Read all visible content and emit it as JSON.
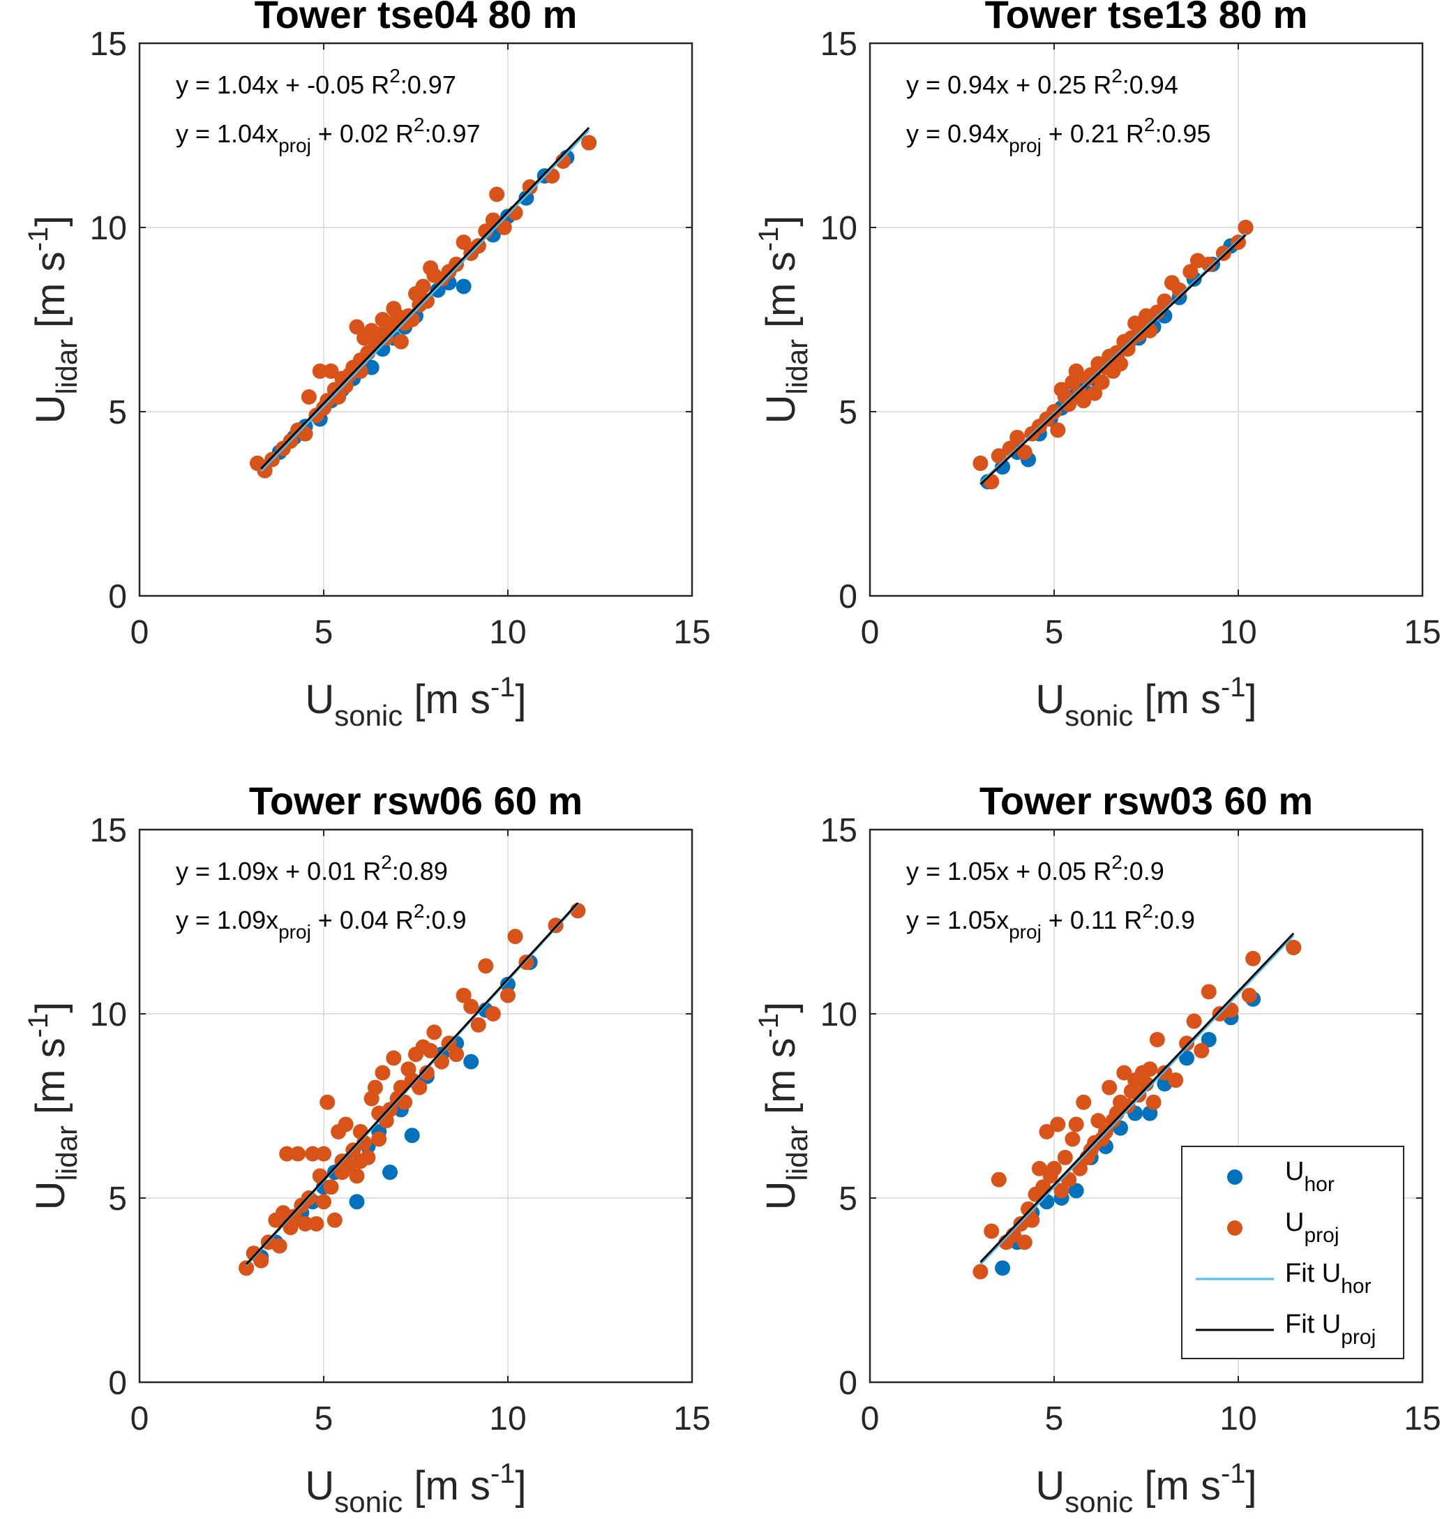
{
  "colors": {
    "u_hor": "#0072bd",
    "u_proj": "#d95319",
    "fit_hor": "#4dbeee",
    "fit_proj": "#000000",
    "grid": "#dfdfdf",
    "axis": "#262626"
  },
  "legend": {
    "location": "bottom-right of panel 4",
    "entries": [
      {
        "label": "U",
        "sub": "hor",
        "kind": "marker",
        "color_key": "u_hor"
      },
      {
        "label": "U",
        "sub": "proj",
        "kind": "marker",
        "color_key": "u_proj"
      },
      {
        "label": "Fit U",
        "sub": "hor",
        "kind": "line",
        "color_key": "fit_hor"
      },
      {
        "label": "Fit U",
        "sub": "proj",
        "kind": "line",
        "color_key": "fit_proj"
      }
    ]
  },
  "chart_data": [
    {
      "type": "scatter",
      "title": "Tower tse04 80 m",
      "xlabel": {
        "main": "U",
        "sub": "sonic",
        "unit": "[m s",
        "sup": "-1",
        "close": "]"
      },
      "ylabel": {
        "main": "U",
        "sub": "lidar",
        "unit": "[m s",
        "sup": "-1",
        "close": "]"
      },
      "xlim": [
        0,
        15
      ],
      "ylim": [
        0,
        15
      ],
      "xticks": [
        0,
        5,
        10,
        15
      ],
      "yticks": [
        0,
        5,
        10,
        15
      ],
      "grid": true,
      "annotations": [
        {
          "pre": "y = 1.04x",
          "sub": "",
          "post": " + -0.05  R",
          "sup": "2",
          "tail": ":0.97"
        },
        {
          "pre": "y = 1.04x",
          "sub": "proj",
          "post": " + 0.02  R",
          "sup": "2",
          "tail": ":0.97"
        }
      ],
      "fit_hor": {
        "slope": 1.04,
        "intercept": -0.05,
        "x_range": [
          3.3,
          12.2
        ]
      },
      "fit_proj": {
        "slope": 1.04,
        "intercept": 0.02,
        "x_range": [
          3.3,
          12.2
        ]
      },
      "series": [
        {
          "name": "U hor",
          "x": [
            3.4,
            3.8,
            4.2,
            4.5,
            4.9,
            5.2,
            5.5,
            5.8,
            6.0,
            6.3,
            6.6,
            6.9,
            7.2,
            7.5,
            7.8,
            8.1,
            8.4,
            8.8,
            9.2,
            9.6,
            10.0,
            10.5,
            11.0,
            11.6,
            12.2
          ],
          "y": [
            3.4,
            3.9,
            4.3,
            4.6,
            4.8,
            5.3,
            5.6,
            5.9,
            6.1,
            6.2,
            6.7,
            7.0,
            7.3,
            7.6,
            8.0,
            8.3,
            8.5,
            8.4,
            9.5,
            9.8,
            10.3,
            10.8,
            11.4,
            11.9,
            12.3
          ]
        },
        {
          "name": "U proj",
          "x": [
            3.2,
            3.4,
            3.6,
            3.9,
            4.1,
            4.3,
            4.5,
            4.6,
            4.8,
            4.9,
            5.0,
            5.1,
            5.2,
            5.3,
            5.4,
            5.5,
            5.6,
            5.7,
            5.8,
            5.9,
            6.0,
            6.0,
            6.1,
            6.2,
            6.3,
            6.4,
            6.5,
            6.6,
            6.7,
            6.8,
            6.9,
            7.0,
            7.1,
            7.2,
            7.3,
            7.4,
            7.5,
            7.6,
            7.7,
            7.8,
            7.9,
            8.0,
            8.2,
            8.4,
            8.6,
            8.8,
            9.0,
            9.2,
            9.4,
            9.6,
            9.7,
            9.9,
            10.2,
            10.6,
            11.2,
            11.5,
            12.2
          ],
          "y": [
            3.6,
            3.4,
            3.7,
            4.0,
            4.2,
            4.5,
            4.4,
            5.4,
            4.9,
            6.1,
            5.1,
            5.3,
            6.1,
            5.6,
            5.4,
            5.9,
            5.7,
            6.0,
            6.2,
            7.3,
            6.4,
            6.1,
            7.0,
            6.6,
            7.2,
            6.9,
            7.1,
            7.5,
            7.0,
            7.3,
            7.8,
            7.6,
            6.9,
            7.4,
            7.6,
            7.5,
            8.2,
            7.9,
            8.4,
            8.0,
            8.9,
            8.7,
            8.6,
            8.8,
            9.0,
            9.6,
            9.3,
            9.5,
            9.9,
            10.2,
            10.9,
            10.0,
            10.4,
            11.1,
            11.4,
            11.8,
            12.3
          ]
        }
      ]
    },
    {
      "type": "scatter",
      "title": "Tower tse13 80 m",
      "xlabel": {
        "main": "U",
        "sub": "sonic",
        "unit": "[m s",
        "sup": "-1",
        "close": "]"
      },
      "ylabel": {
        "main": "U",
        "sub": "lidar",
        "unit": "[m s",
        "sup": "-1",
        "close": "]"
      },
      "xlim": [
        0,
        15
      ],
      "ylim": [
        0,
        15
      ],
      "xticks": [
        0,
        5,
        10,
        15
      ],
      "yticks": [
        0,
        5,
        10,
        15
      ],
      "grid": true,
      "annotations": [
        {
          "pre": "y = 0.94x",
          "sub": "",
          "post": " + 0.25  R",
          "sup": "2",
          "tail": ":0.94"
        },
        {
          "pre": "y = 0.94x",
          "sub": "proj",
          "post": " + 0.21  R",
          "sup": "2",
          "tail": ":0.95"
        }
      ],
      "fit_hor": {
        "slope": 0.94,
        "intercept": 0.25,
        "x_range": [
          3.0,
          10.2
        ]
      },
      "fit_proj": {
        "slope": 0.94,
        "intercept": 0.21,
        "x_range": [
          3.0,
          10.2
        ]
      },
      "series": [
        {
          "name": "U hor",
          "x": [
            3.2,
            3.6,
            4.0,
            4.3,
            4.6,
            4.9,
            5.2,
            5.5,
            5.8,
            6.1,
            6.4,
            6.7,
            7.0,
            7.3,
            7.7,
            8.0,
            8.4,
            8.8,
            9.3,
            9.8,
            10.2
          ],
          "y": [
            3.1,
            3.5,
            3.9,
            3.7,
            4.4,
            4.8,
            5.1,
            5.4,
            5.6,
            5.9,
            6.2,
            6.5,
            6.8,
            7.0,
            7.3,
            7.6,
            8.1,
            8.6,
            9.0,
            9.5,
            10.0
          ]
        },
        {
          "name": "U proj",
          "x": [
            3.0,
            3.3,
            3.5,
            3.8,
            4.0,
            4.2,
            4.4,
            4.6,
            4.8,
            5.0,
            5.1,
            5.2,
            5.3,
            5.4,
            5.5,
            5.6,
            5.7,
            5.8,
            5.9,
            6.0,
            6.1,
            6.2,
            6.3,
            6.4,
            6.5,
            6.6,
            6.7,
            6.8,
            6.9,
            7.0,
            7.1,
            7.2,
            7.3,
            7.4,
            7.5,
            7.6,
            7.8,
            8.0,
            8.2,
            8.4,
            8.7,
            8.9,
            9.2,
            9.6,
            10.0,
            10.2
          ],
          "y": [
            3.6,
            3.1,
            3.8,
            4.0,
            4.3,
            3.9,
            4.4,
            4.6,
            4.8,
            5.0,
            4.5,
            5.6,
            5.4,
            5.2,
            5.8,
            6.1,
            5.5,
            5.3,
            5.9,
            6.0,
            5.5,
            6.3,
            5.8,
            6.2,
            6.5,
            6.1,
            6.6,
            6.3,
            6.9,
            6.7,
            7.0,
            7.4,
            7.1,
            7.3,
            7.6,
            7.2,
            7.7,
            8.0,
            8.5,
            8.3,
            8.8,
            9.1,
            9.0,
            9.3,
            9.6,
            10.0
          ]
        }
      ]
    },
    {
      "type": "scatter",
      "title": "Tower rsw06 60 m",
      "xlabel": {
        "main": "U",
        "sub": "sonic",
        "unit": "[m s",
        "sup": "-1",
        "close": "]"
      },
      "ylabel": {
        "main": "U",
        "sub": "lidar",
        "unit": "[m s",
        "sup": "-1",
        "close": "]"
      },
      "xlim": [
        0,
        15
      ],
      "ylim": [
        0,
        15
      ],
      "xticks": [
        0,
        5,
        10,
        15
      ],
      "yticks": [
        0,
        5,
        10,
        15
      ],
      "grid": true,
      "annotations": [
        {
          "pre": "y = 1.09x",
          "sub": "",
          "post": " + 0.01  R",
          "sup": "2",
          "tail": ":0.89"
        },
        {
          "pre": "y = 1.09x",
          "sub": "proj",
          "post": " + 0.04  R",
          "sup": "2",
          "tail": ":0.9"
        }
      ],
      "fit_hor": {
        "slope": 1.09,
        "intercept": 0.01,
        "x_range": [
          2.9,
          11.9
        ]
      },
      "fit_proj": {
        "slope": 1.09,
        "intercept": 0.04,
        "x_range": [
          2.9,
          11.9
        ]
      },
      "series": [
        {
          "name": "U hor",
          "x": [
            2.9,
            3.3,
            3.7,
            4.1,
            4.4,
            4.7,
            5.0,
            5.3,
            5.6,
            5.9,
            6.2,
            6.5,
            6.8,
            7.1,
            7.4,
            7.8,
            8.2,
            8.6,
            9.0,
            9.4,
            10.0,
            10.6,
            11.3,
            11.9
          ],
          "y": [
            3.1,
            3.4,
            3.8,
            4.3,
            4.6,
            4.9,
            5.3,
            5.7,
            6.0,
            4.9,
            6.4,
            6.8,
            5.7,
            7.4,
            6.7,
            8.3,
            8.9,
            9.2,
            8.7,
            10.1,
            10.8,
            11.4,
            12.4,
            12.8
          ]
        },
        {
          "name": "U proj",
          "x": [
            2.9,
            3.1,
            3.3,
            3.5,
            3.7,
            3.8,
            3.9,
            4.0,
            4.1,
            4.2,
            4.3,
            4.4,
            4.5,
            4.6,
            4.7,
            4.8,
            4.9,
            5.0,
            5.0,
            5.1,
            5.2,
            5.3,
            5.4,
            5.5,
            5.5,
            5.6,
            5.7,
            5.8,
            5.9,
            6.0,
            6.0,
            6.1,
            6.2,
            6.3,
            6.4,
            6.5,
            6.5,
            6.6,
            6.7,
            6.8,
            6.9,
            7.0,
            7.1,
            7.2,
            7.3,
            7.4,
            7.5,
            7.6,
            7.7,
            7.8,
            7.9,
            8.0,
            8.2,
            8.4,
            8.6,
            8.8,
            9.0,
            9.2,
            9.4,
            9.6,
            10.0,
            10.2,
            10.5,
            11.3,
            11.9
          ],
          "y": [
            3.1,
            3.5,
            3.3,
            3.8,
            4.4,
            3.7,
            4.6,
            6.2,
            4.2,
            4.5,
            6.2,
            4.8,
            4.3,
            5.0,
            6.2,
            4.3,
            5.6,
            4.9,
            6.2,
            7.6,
            5.3,
            4.4,
            6.8,
            5.7,
            6.0,
            7.0,
            5.9,
            6.3,
            5.6,
            6.8,
            6.0,
            6.5,
            6.1,
            7.7,
            8.0,
            6.6,
            7.3,
            8.4,
            7.1,
            7.4,
            8.8,
            7.7,
            8.0,
            7.6,
            8.5,
            8.2,
            8.9,
            8.0,
            9.1,
            8.4,
            9.0,
            9.5,
            8.7,
            9.2,
            8.9,
            10.5,
            10.2,
            9.7,
            11.3,
            10.0,
            10.5,
            12.1,
            11.4,
            12.4,
            12.8
          ]
        }
      ]
    },
    {
      "type": "scatter",
      "title": "Tower rsw03 60 m",
      "xlabel": {
        "main": "U",
        "sub": "sonic",
        "unit": "[m s",
        "sup": "-1",
        "close": "]"
      },
      "ylabel": {
        "main": "U",
        "sub": "lidar",
        "unit": "[m s",
        "sup": "-1",
        "close": "]"
      },
      "xlim": [
        0,
        15
      ],
      "ylim": [
        0,
        15
      ],
      "xticks": [
        0,
        5,
        10,
        15
      ],
      "yticks": [
        0,
        5,
        10,
        15
      ],
      "grid": true,
      "annotations": [
        {
          "pre": "y = 1.05x",
          "sub": "",
          "post": " + 0.05  R",
          "sup": "2",
          "tail": ":0.9"
        },
        {
          "pre": "y = 1.05x",
          "sub": "proj",
          "post": " + 0.11  R",
          "sup": "2",
          "tail": ":0.9"
        }
      ],
      "fit_hor": {
        "slope": 1.05,
        "intercept": 0.05,
        "x_range": [
          3.0,
          11.5
        ]
      },
      "fit_proj": {
        "slope": 1.05,
        "intercept": 0.11,
        "x_range": [
          3.0,
          11.5
        ]
      },
      "series": [
        {
          "name": "U hor",
          "x": [
            3.6,
            4.0,
            4.4,
            4.8,
            5.2,
            5.6,
            6.0,
            6.4,
            6.8,
            7.2,
            7.6,
            8.0,
            8.6,
            9.2,
            9.8,
            10.4,
            11.5
          ],
          "y": [
            3.1,
            3.8,
            4.6,
            4.9,
            5.0,
            5.2,
            6.1,
            6.4,
            6.9,
            7.3,
            7.3,
            8.1,
            8.8,
            9.3,
            9.9,
            10.4,
            11.8
          ]
        },
        {
          "name": "U proj",
          "x": [
            3.0,
            3.3,
            3.5,
            3.7,
            3.9,
            4.1,
            4.2,
            4.3,
            4.4,
            4.5,
            4.6,
            4.7,
            4.8,
            4.9,
            5.0,
            5.1,
            5.2,
            5.3,
            5.4,
            5.5,
            5.6,
            5.7,
            5.8,
            5.9,
            6.0,
            6.1,
            6.2,
            6.3,
            6.4,
            6.5,
            6.6,
            6.7,
            6.8,
            6.9,
            7.0,
            7.1,
            7.2,
            7.3,
            7.4,
            7.5,
            7.6,
            7.7,
            7.8,
            8.0,
            8.3,
            8.6,
            8.8,
            9.0,
            9.2,
            9.5,
            9.8,
            10.3,
            10.4,
            11.5
          ],
          "y": [
            3.0,
            4.1,
            5.5,
            3.8,
            4.0,
            4.3,
            3.8,
            4.7,
            4.4,
            5.1,
            5.8,
            5.3,
            6.8,
            5.6,
            5.8,
            7.0,
            5.2,
            6.1,
            5.5,
            6.6,
            7.0,
            5.8,
            7.6,
            6.1,
            6.3,
            6.5,
            7.1,
            6.6,
            6.8,
            8.0,
            7.1,
            7.3,
            7.6,
            8.4,
            7.5,
            7.9,
            8.2,
            7.8,
            8.4,
            8.1,
            8.5,
            7.6,
            9.3,
            8.4,
            8.2,
            9.2,
            9.8,
            9.0,
            10.6,
            10.0,
            10.1,
            10.5,
            11.5,
            11.8
          ]
        }
      ]
    }
  ]
}
